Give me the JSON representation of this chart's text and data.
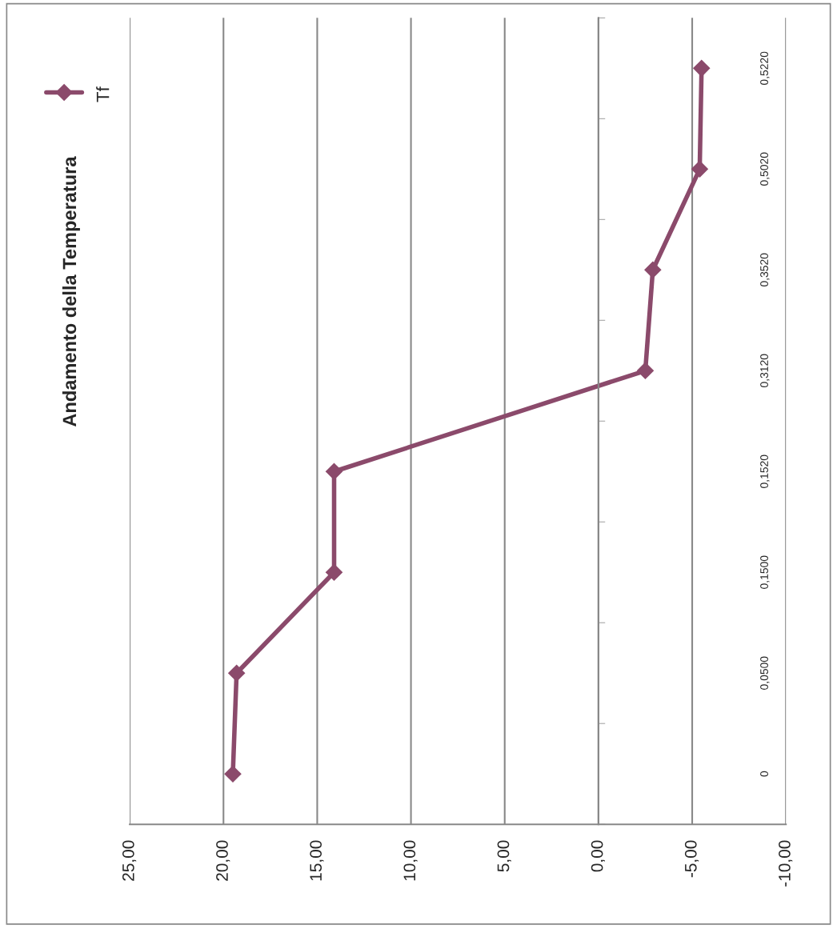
{
  "chart_data": {
    "type": "line",
    "title": "Andamento della Temperatura",
    "orientation": "horizontal",
    "categories": [
      "0,5220",
      "0,5020",
      "0,3520",
      "0,3120",
      "0,1520",
      "0,1500",
      "0,0500",
      "0"
    ],
    "series": [
      {
        "name": "Tf",
        "color": "#8b4a6b",
        "values": [
          -5.5,
          -5.4,
          -2.9,
          -2.5,
          14.1,
          14.1,
          19.3,
          19.5
        ]
      }
    ],
    "xlim": [
      25,
      -10
    ],
    "xticks": [
      {
        "value": 25,
        "label": "25,00"
      },
      {
        "value": 20,
        "label": "20,00"
      },
      {
        "value": 15,
        "label": "15,00"
      },
      {
        "value": 10,
        "label": "10,00"
      },
      {
        "value": 5,
        "label": "5,00"
      },
      {
        "value": 0,
        "label": "0,00"
      },
      {
        "value": -5,
        "label": "-5,00"
      },
      {
        "value": -10,
        "label": "-10,00"
      }
    ],
    "grid": "x",
    "legend": "top left",
    "marker": "diamond",
    "line_style": "solid"
  }
}
